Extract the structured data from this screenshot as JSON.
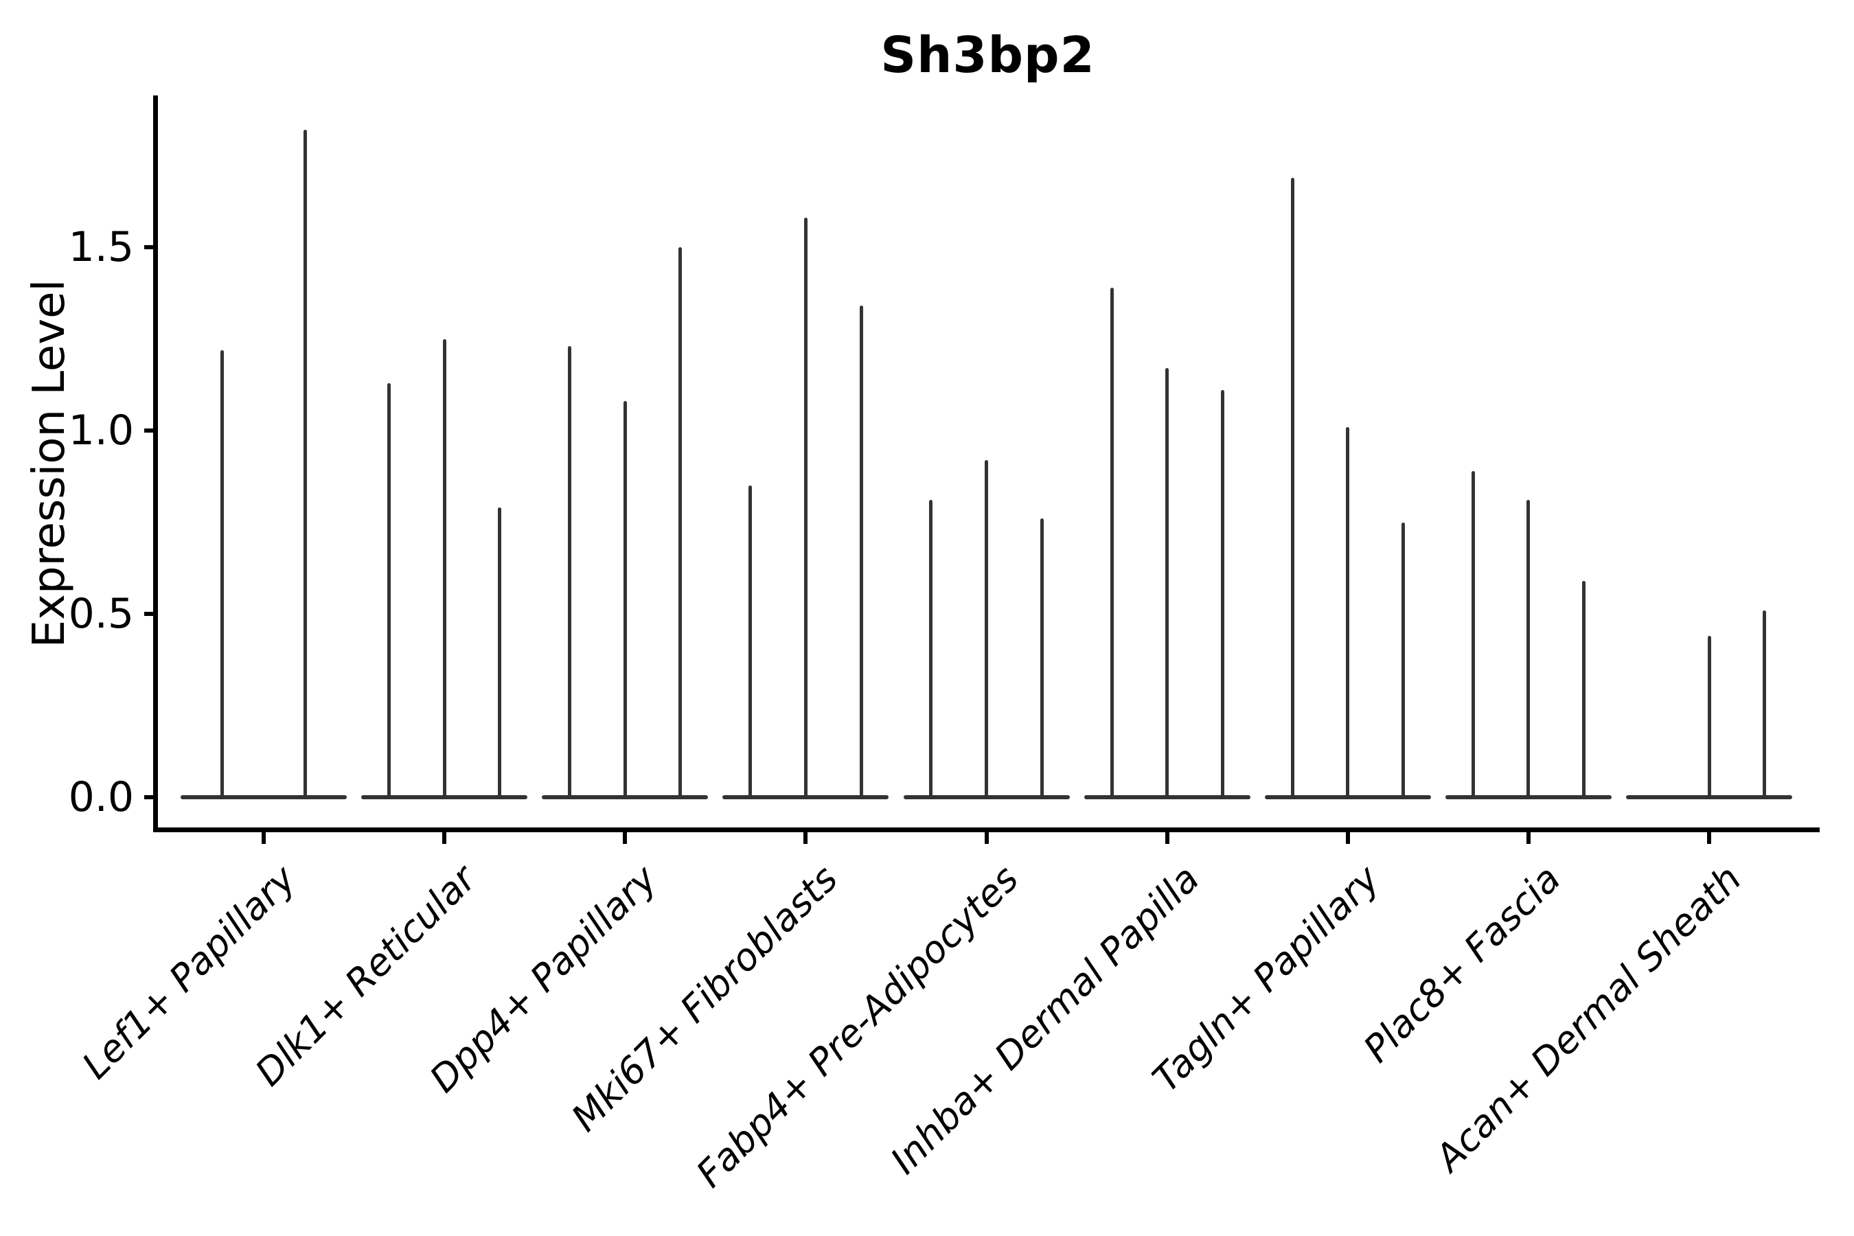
{
  "title": "Sh3bp2",
  "y_axis": {
    "label": "Expression Level",
    "tick_labels": [
      "0.0",
      "0.5",
      "1.0",
      "1.5"
    ],
    "tick_values": [
      0.0,
      0.5,
      1.0,
      1.5
    ]
  },
  "style": {
    "violin_color": "#333333",
    "axis_color": "#000000",
    "background": "#ffffff"
  },
  "chart_data": {
    "type": "violin",
    "title": "Sh3bp2",
    "xlabel": "",
    "ylabel": "Expression Level",
    "ylim": [
      -0.09,
      1.91
    ],
    "yticks": [
      0.0,
      0.5,
      1.0,
      1.5
    ],
    "grid": false,
    "legend": "none",
    "description": "Needle-thin violin plot of Sh3bp2 expression per fibroblast cluster; each category holds 2-3 violins whose bodies collapse to a flat bar at 0 with a thin spike up to the maximum expression value.",
    "categories": [
      "Lef1+ Papillary",
      "Dlk1+ Reticular",
      "Dpp4+ Papillary",
      "Mki67+ Fibroblasts",
      "Fabp4+ Pre-Adipocytes",
      "Inhba+ Dermal Papilla",
      "Tagln+ Papillary",
      "Plac8+ Fascia",
      "Acan+ Dermal Sheath"
    ],
    "groups": [
      {
        "category": "Lef1+ Papillary",
        "violin_max_values": [
          1.22,
          1.82
        ]
      },
      {
        "category": "Dlk1+ Reticular",
        "violin_max_values": [
          1.13,
          1.25,
          0.79
        ]
      },
      {
        "category": "Dpp4+ Papillary",
        "violin_max_values": [
          1.23,
          1.08,
          1.5
        ]
      },
      {
        "category": "Mki67+ Fibroblasts",
        "violin_max_values": [
          0.85,
          1.58,
          1.34
        ]
      },
      {
        "category": "Fabp4+ Pre-Adipocytes",
        "violin_max_values": [
          0.81,
          0.92,
          0.76
        ]
      },
      {
        "category": "Inhba+ Dermal Papilla",
        "violin_max_values": [
          1.39,
          1.17,
          1.11
        ]
      },
      {
        "category": "Tagln+ Papillary",
        "violin_max_values": [
          1.69,
          1.01,
          0.75
        ]
      },
      {
        "category": "Plac8+ Fascia",
        "violin_max_values": [
          0.89,
          0.81,
          0.59
        ]
      },
      {
        "category": "Acan+ Dermal Sheath",
        "violin_max_values": [
          0.0,
          0.44,
          0.51
        ]
      }
    ]
  }
}
